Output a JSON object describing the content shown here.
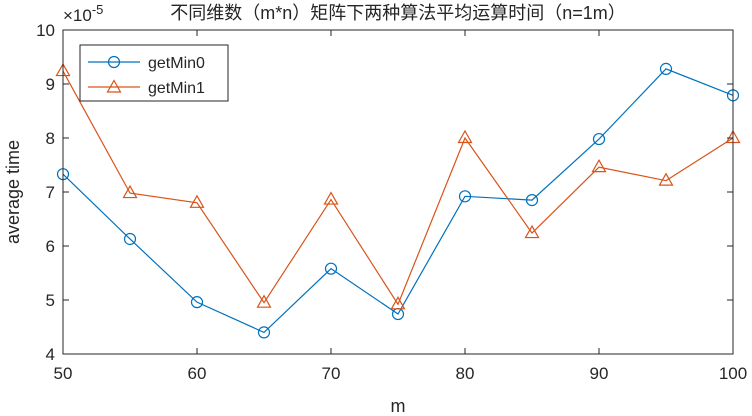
{
  "chart_data": {
    "type": "line",
    "title": "不同维数（m*n）矩阵下两种算法平均运算时间（n=1m）",
    "xlabel": "m",
    "ylabel": "average time",
    "y_exponent_label": "×10",
    "y_exponent_power": "-5",
    "x": [
      50,
      55,
      60,
      65,
      70,
      75,
      80,
      85,
      90,
      95,
      100
    ],
    "xlim": [
      50,
      100
    ],
    "ylim": [
      4,
      10
    ],
    "x_ticks": [
      50,
      60,
      70,
      80,
      90,
      100
    ],
    "y_ticks": [
      4,
      5,
      6,
      7,
      8,
      9,
      10
    ],
    "grid": false,
    "legend_position": "top-left",
    "series": [
      {
        "name": "getMin0",
        "marker": "circle",
        "color": "#0072BD",
        "values": [
          7.33,
          6.13,
          4.96,
          4.4,
          5.58,
          4.74,
          6.92,
          6.85,
          7.98,
          9.28,
          8.79
        ]
      },
      {
        "name": "getMin1",
        "marker": "triangle",
        "color": "#D95319",
        "values": [
          9.24,
          6.98,
          6.8,
          4.95,
          6.86,
          4.92,
          8.0,
          6.24,
          7.46,
          7.21,
          8.0
        ]
      }
    ]
  }
}
